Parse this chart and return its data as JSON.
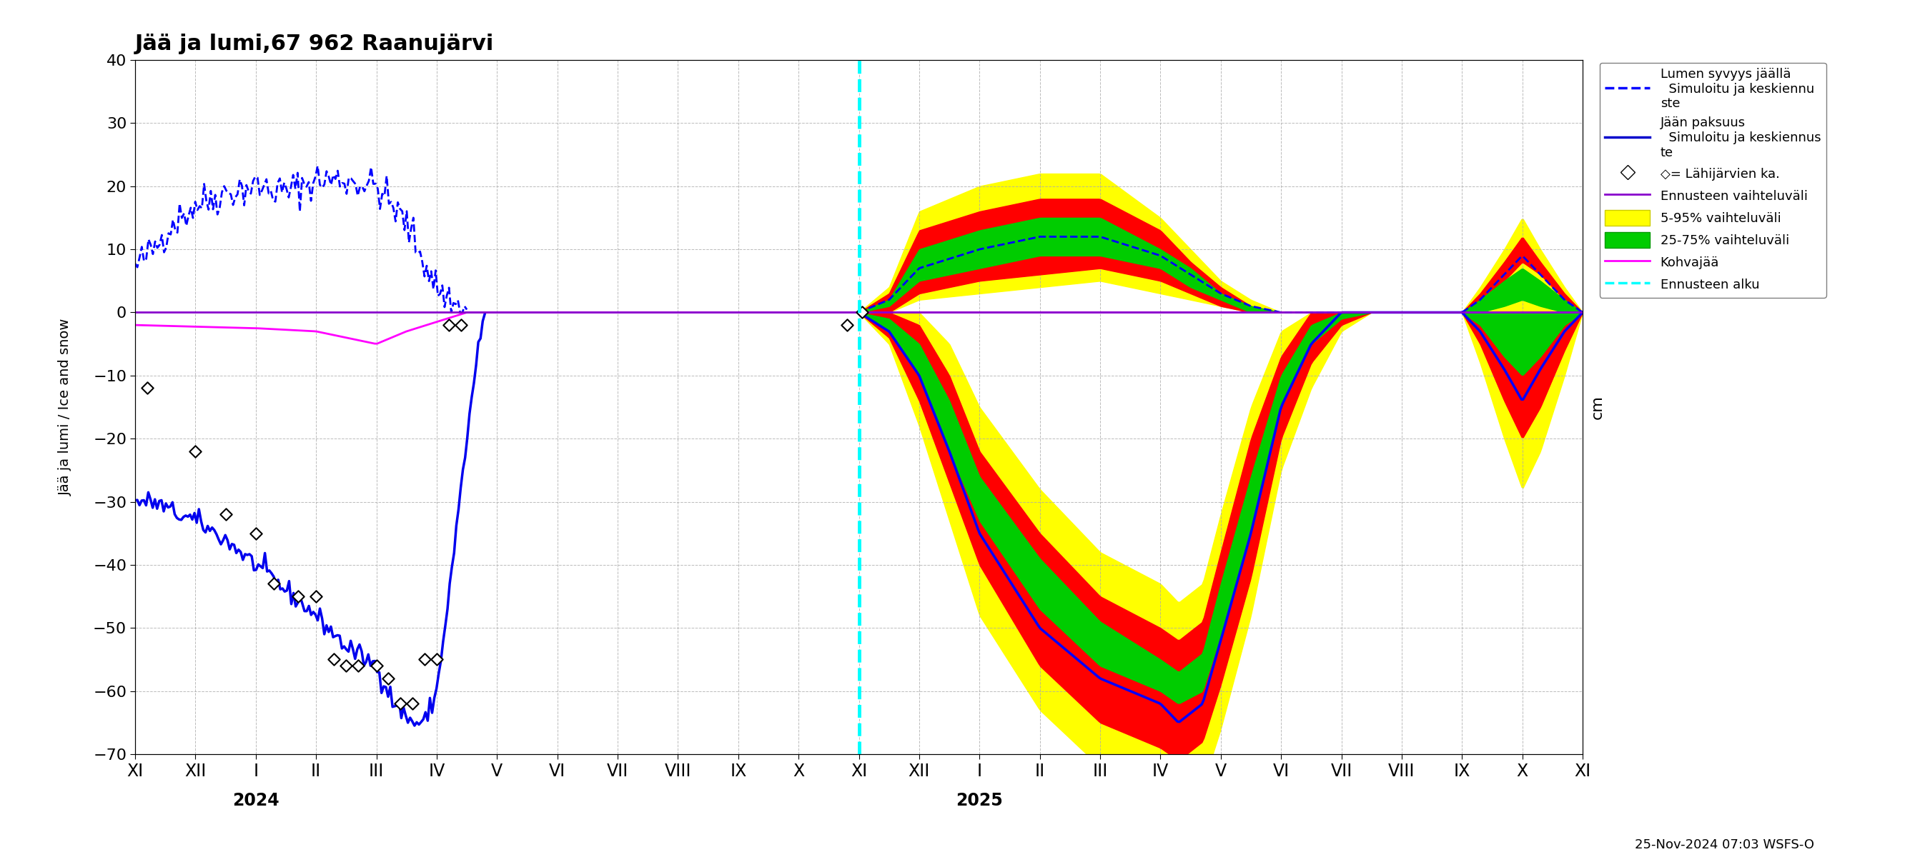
{
  "title": "Jää ja lumi,67 962 Raanujärvi",
  "ylabel": "Jää ja lumi / Ice and snow",
  "ylabel_right": "cm",
  "ylim": [
    -70,
    40
  ],
  "yticks": [
    -70,
    -60,
    -50,
    -40,
    -30,
    -20,
    -10,
    0,
    10,
    20,
    30,
    40
  ],
  "background_color": "#ffffff",
  "grid_color": "#aaaaaa",
  "date_label_2024": "2024",
  "date_label_2025": "2025",
  "footer_text": "25-Nov-2024 07:03 WSFS-O",
  "colors": {
    "snow_sim": "#0000ff",
    "ice_sim": "#0000cc",
    "observed": "#000000",
    "forecast_range": "#8800aa",
    "range_yellow": "#ffff00",
    "range_red": "#ff0000",
    "range_green": "#00cc00",
    "kohvajaa": "#ff00ff",
    "forecast_start": "#00ffff"
  }
}
